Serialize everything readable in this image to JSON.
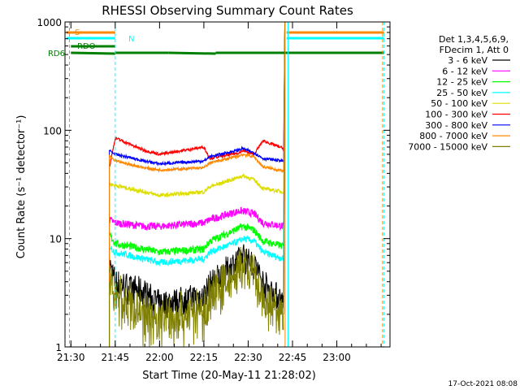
{
  "chart_data": {
    "type": "line",
    "title": "RHESSI Observing Summary Count Rates",
    "xlabel": "Start Time (20-May-11 21:28:02)",
    "ylabel": "Count Rate (s⁻¹ detector⁻¹)",
    "y_scale": "log",
    "ylim": [
      1,
      1000
    ],
    "xlim": [
      1288,
      1398
    ],
    "x_ticks": [
      1290,
      1305,
      1320,
      1335,
      1350,
      1365,
      1380
    ],
    "x_tick_labels": [
      "21:30",
      "21:45",
      "22:00",
      "22:15",
      "22:30",
      "22:45",
      "23:00"
    ],
    "y_ticks": [
      1,
      10,
      100,
      1000
    ],
    "y_tick_labels": [
      "1",
      "10",
      "100",
      "1000"
    ],
    "legend_title": [
      "Det 1,3,4,5,6,9,",
      "FDecim 1, Att 0"
    ],
    "legend_position": "right",
    "series": [
      {
        "name": "3 - 6 keV",
        "color": "#000000",
        "x": [
          1303,
          1305,
          1315,
          1320,
          1335,
          1337,
          1347,
          1348,
          1352,
          1355,
          1362
        ],
        "y": [
          6,
          4,
          3.2,
          2.5,
          3,
          3.8,
          6.5,
          7,
          6,
          4,
          2.6
        ]
      },
      {
        "name": "6 - 12 keV",
        "color": "#ff00ff",
        "x": [
          1303,
          1305,
          1315,
          1320,
          1335,
          1337,
          1347,
          1348,
          1352,
          1355,
          1362
        ],
        "y": [
          15,
          14,
          13,
          13,
          14,
          15,
          18,
          18,
          17,
          14,
          13
        ]
      },
      {
        "name": "12 - 25 keV",
        "color": "#00ff00",
        "x": [
          1303,
          1305,
          1315,
          1320,
          1335,
          1337,
          1347,
          1348,
          1352,
          1355,
          1362
        ],
        "y": [
          11,
          9,
          8,
          7.5,
          8,
          9.5,
          12.5,
          13,
          12,
          9.5,
          8.5
        ]
      },
      {
        "name": "25 - 50 keV",
        "color": "#00ffff",
        "x": [
          1303,
          1305,
          1315,
          1320,
          1335,
          1337,
          1347,
          1348,
          1352,
          1355,
          1362
        ],
        "y": [
          8.5,
          7.5,
          6.5,
          6,
          6.5,
          7.5,
          9.5,
          10,
          9.5,
          7.5,
          6.5
        ]
      },
      {
        "name": "50 - 100 keV",
        "color": "#dddd00",
        "x": [
          1303,
          1305,
          1315,
          1320,
          1335,
          1337,
          1347,
          1348,
          1352,
          1355,
          1362
        ],
        "y": [
          32,
          31,
          27,
          25,
          27,
          30,
          37,
          38,
          35,
          29,
          27
        ]
      },
      {
        "name": "100 - 300 keV",
        "color": "#ff0000",
        "x": [
          1303,
          1305,
          1315,
          1320,
          1335,
          1337,
          1347,
          1348,
          1352,
          1355,
          1362
        ],
        "y": [
          45,
          85,
          65,
          60,
          70,
          55,
          62,
          65,
          60,
          80,
          68
        ]
      },
      {
        "name": "300 - 800 keV",
        "color": "#0000ff",
        "x": [
          1303,
          1305,
          1315,
          1320,
          1335,
          1337,
          1347,
          1348,
          1352,
          1355,
          1362
        ],
        "y": [
          65,
          60,
          52,
          49,
          52,
          57,
          66,
          68,
          62,
          55,
          52
        ]
      },
      {
        "name": "800 - 7000 keV",
        "color": "#ff8800",
        "x": [
          1303,
          1305,
          1315,
          1320,
          1335,
          1337,
          1347,
          1348,
          1352,
          1355,
          1362
        ],
        "y": [
          58,
          52,
          45,
          43,
          45,
          50,
          58,
          60,
          57,
          46,
          42
        ]
      },
      {
        "name": "7000 - 15000 keV",
        "color": "#808000",
        "x": [
          1303,
          1305,
          1315,
          1320,
          1335,
          1337,
          1347,
          1348,
          1352,
          1355,
          1362
        ],
        "y": [
          4,
          3,
          2,
          1.8,
          2.2,
          3,
          5,
          5.5,
          4.5,
          2.5,
          2
        ]
      }
    ],
    "flags": [
      {
        "label": "S",
        "color": "#ff8800",
        "segments": [
          [
            1288.5,
            1305
          ],
          [
            1363,
            1396
          ]
        ]
      },
      {
        "label": "N",
        "color": "#00ffff",
        "segments": [
          [
            1288.5,
            1305
          ],
          [
            1363,
            1396
          ]
        ]
      },
      {
        "label": "RDO",
        "color": "#008000",
        "segments": [
          [
            1290,
            1305
          ]
        ]
      },
      {
        "label": "RD6",
        "color": "#008000",
        "segments": [
          [
            1290,
            1305
          ],
          [
            1305,
            1323
          ],
          [
            1323,
            1339
          ],
          [
            1339,
            1396
          ]
        ]
      }
    ],
    "vertical_lines": [
      {
        "x": 1288,
        "color": "#00ffff",
        "style": "solid"
      },
      {
        "x": 1289.5,
        "color": "#ff8800",
        "style": "dashed"
      },
      {
        "x": 1305,
        "color": "#00ffff",
        "style": "dashed"
      },
      {
        "x": 1362.5,
        "color": "#ff8800",
        "style": "solid"
      },
      {
        "x": 1363.5,
        "color": "#00ffff",
        "style": "solid"
      },
      {
        "x": 1395.5,
        "color": "#ff8800",
        "style": "dashed"
      },
      {
        "x": 1396,
        "color": "#00ffff",
        "style": "dashed"
      }
    ],
    "grid": false
  },
  "footer_date": "17-Oct-2021 08:08"
}
